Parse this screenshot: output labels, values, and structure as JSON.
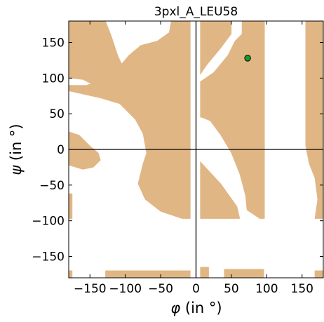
{
  "chart_data": {
    "type": "scatter",
    "title": "3pxl_A_LEU58",
    "x_axis": {
      "label_symbol": "φ",
      "label_unit": "(in °)",
      "range": [
        -180,
        180
      ],
      "ticks": [
        -150,
        -100,
        -50,
        0,
        50,
        100,
        150
      ],
      "tick_labels": [
        "−150",
        "−100",
        "−50",
        "0",
        "50",
        "100",
        "150"
      ]
    },
    "y_axis": {
      "label_symbol": "ψ",
      "label_unit": "(in °)",
      "range": [
        -180,
        180
      ],
      "ticks": [
        -150,
        -100,
        -50,
        0,
        50,
        100,
        150
      ],
      "tick_labels": [
        "−150",
        "−100",
        "−50",
        "0",
        "50",
        "100",
        "150"
      ]
    },
    "points": [
      {
        "phi": 73,
        "psi": 128
      }
    ],
    "reference_lines": {
      "phi": 0,
      "psi": 0
    },
    "grid": false,
    "colors": {
      "allowed_region": "#e1b685",
      "disallowed_region": "#ffffff",
      "point_fill": "#1a9a2a",
      "point_edge": "#000000",
      "axis_lines": "#000000"
    },
    "allowed_regions": [
      [
        [
          -180,
          180
        ],
        [
          -128,
          180
        ],
        [
          -120,
          160
        ],
        [
          -110,
          130
        ],
        [
          -100,
          110
        ],
        [
          -82,
          103
        ],
        [
          -68,
          110
        ],
        [
          -70,
          88
        ],
        [
          -82,
          75
        ],
        [
          -100,
          72
        ],
        [
          -120,
          78
        ],
        [
          -140,
          88
        ],
        [
          -160,
          98
        ],
        [
          -180,
          100
        ]
      ],
      [
        [
          -180,
          82
        ],
        [
          -135,
          72
        ],
        [
          -108,
          64
        ],
        [
          -86,
          42
        ],
        [
          -75,
          22
        ],
        [
          -70,
          -5
        ],
        [
          -75,
          -20
        ],
        [
          -82,
          -48
        ],
        [
          -72,
          -70
        ],
        [
          -50,
          -87
        ],
        [
          -20,
          -97
        ],
        [
          -8,
          -97
        ],
        [
          -8,
          180
        ],
        [
          -35,
          180
        ],
        [
          -38,
          164
        ],
        [
          -55,
          152
        ],
        [
          -78,
          146
        ],
        [
          -95,
          132
        ],
        [
          -112,
          112
        ],
        [
          -130,
          98
        ],
        [
          -155,
          90
        ],
        [
          -180,
          90
        ]
      ],
      [
        [
          -180,
          25
        ],
        [
          -165,
          20
        ],
        [
          -150,
          5
        ],
        [
          -138,
          -5
        ],
        [
          -135,
          -15
        ],
        [
          -145,
          -25
        ],
        [
          -160,
          -28
        ],
        [
          -180,
          -22
        ]
      ],
      [
        [
          -180,
          -62
        ],
        [
          -175,
          -62
        ],
        [
          -175,
          -97
        ],
        [
          -180,
          -97
        ]
      ],
      [
        [
          6,
          180
        ],
        [
          50,
          180
        ],
        [
          50,
          162
        ],
        [
          35,
          142
        ],
        [
          15,
          118
        ],
        [
          6,
          105
        ]
      ],
      [
        [
          6,
          95
        ],
        [
          25,
          108
        ],
        [
          45,
          132
        ],
        [
          55,
          152
        ],
        [
          65,
          162
        ],
        [
          65,
          180
        ],
        [
          97,
          180
        ],
        [
          97,
          -97
        ],
        [
          90,
          -97
        ],
        [
          72,
          -85
        ],
        [
          70,
          -65
        ],
        [
          62,
          -35
        ],
        [
          50,
          -5
        ],
        [
          35,
          20
        ],
        [
          20,
          40
        ],
        [
          8,
          45
        ],
        [
          6,
          45
        ]
      ],
      [
        [
          6,
          -17
        ],
        [
          35,
          -48
        ],
        [
          58,
          -80
        ],
        [
          62,
          -97
        ],
        [
          6,
          -97
        ]
      ],
      [
        [
          155,
          180
        ],
        [
          180,
          180
        ],
        [
          180,
          -97
        ],
        [
          168,
          -97
        ],
        [
          172,
          -70
        ],
        [
          168,
          -40
        ],
        [
          160,
          -20
        ],
        [
          155,
          5
        ]
      ],
      [
        [
          -180,
          -170
        ],
        [
          -175,
          -170
        ],
        [
          -175,
          -180
        ],
        [
          -180,
          -180
        ]
      ],
      [
        [
          -128,
          -170
        ],
        [
          -8,
          -170
        ],
        [
          -8,
          -180
        ],
        [
          -128,
          -180
        ]
      ],
      [
        [
          6,
          -165
        ],
        [
          18,
          -165
        ],
        [
          18,
          -180
        ],
        [
          6,
          -180
        ]
      ],
      [
        [
          40,
          -168
        ],
        [
          96,
          -168
        ],
        [
          96,
          -180
        ],
        [
          40,
          -180
        ]
      ],
      [
        [
          168,
          -170
        ],
        [
          180,
          -170
        ],
        [
          180,
          -180
        ],
        [
          168,
          -180
        ]
      ]
    ]
  }
}
